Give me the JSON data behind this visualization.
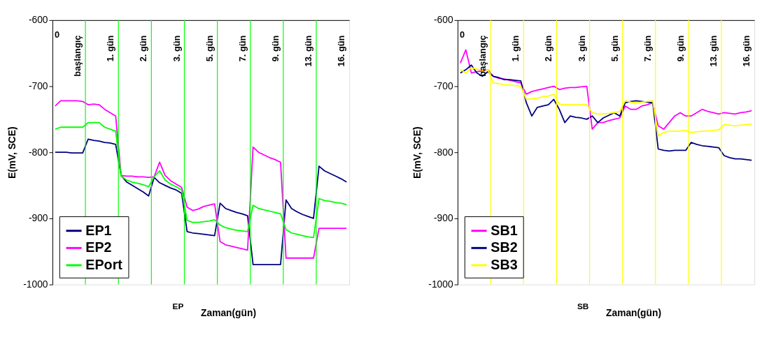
{
  "chart_data": [
    {
      "type": "line",
      "ylabel": "E(mV, SCE)",
      "xlabel": "Zaman(gün)",
      "annotations": [
        "0",
        "başlangıç",
        "1. gün",
        "2. gün",
        "3. gün",
        "5. gün",
        "7. gün",
        "9. gün",
        "13. gün",
        "16. gün",
        "EP"
      ],
      "categories": [
        null,
        null,
        null,
        null,
        null,
        null,
        null,
        null,
        null,
        null,
        null,
        null,
        null,
        null,
        null,
        null,
        null,
        null,
        null,
        null,
        null,
        null,
        null,
        null,
        null,
        null,
        null,
        null,
        null,
        null,
        null,
        null,
        null,
        null,
        null,
        null,
        null,
        null,
        null,
        null,
        null,
        null,
        null,
        null,
        null,
        null,
        null,
        null,
        null,
        null,
        null,
        null,
        null,
        null
      ],
      "ylim": [
        -1000,
        -600
      ],
      "yticks": [
        -600,
        -700,
        -800,
        -900,
        -1000
      ],
      "grid": false,
      "legend": "bottom left",
      "marker": "none",
      "line_style": "solid",
      "series": [
        {
          "name": "EP1",
          "color": "#000080",
          "values": [
            -800,
            -800,
            -800,
            -801,
            -801,
            -801,
            -780,
            -782,
            -783,
            -785,
            -786,
            -788,
            -835,
            -845,
            -850,
            -855,
            -860,
            -866,
            -838,
            -846,
            -850,
            -854,
            -857,
            -862,
            -920,
            -922,
            -923,
            -924,
            -925,
            -926,
            -877,
            -885,
            -888,
            -891,
            -893,
            -896,
            -970,
            -970,
            -970,
            -970,
            -970,
            -970,
            -872,
            -885,
            -890,
            -894,
            -897,
            -900,
            -821,
            -828,
            -832,
            -836,
            -840,
            -845
          ]
        },
        {
          "name": "EP2",
          "color": "#ff00ff",
          "values": [
            -730,
            -722,
            -722,
            -722,
            -722,
            -723,
            -728,
            -727,
            -728,
            -735,
            -740,
            -745,
            -835,
            -836,
            -836,
            -837,
            -837,
            -838,
            -837,
            -815,
            -835,
            -843,
            -848,
            -853,
            -883,
            -888,
            -886,
            -882,
            -880,
            -878,
            -935,
            -940,
            -942,
            -944,
            -946,
            -948,
            -792,
            -800,
            -804,
            -808,
            -811,
            -815,
            -960,
            -960,
            -960,
            -960,
            -960,
            -960,
            -915,
            -915,
            -915,
            -915,
            -915,
            -915
          ]
        },
        {
          "name": "EPort",
          "color": "#00ff00",
          "values": [
            -765,
            -762,
            -762,
            -762,
            -762,
            -762,
            -755,
            -755,
            -755,
            -762,
            -765,
            -768,
            -836,
            -842,
            -845,
            -847,
            -849,
            -852,
            -837,
            -828,
            -842,
            -848,
            -852,
            -857,
            -903,
            -906,
            -906,
            -905,
            -904,
            -902,
            -910,
            -914,
            -916,
            -918,
            -919,
            -920,
            -880,
            -885,
            -887,
            -889,
            -891,
            -893,
            -917,
            -922,
            -924,
            -926,
            -928,
            -929,
            -870,
            -873,
            -874,
            -876,
            -877,
            -879
          ]
        }
      ]
    },
    {
      "type": "line",
      "ylabel": "E(mV, SCE)",
      "xlabel": "Zaman(gün)",
      "annotations": [
        "0",
        "başlangıç",
        "1. gün",
        "2. gün",
        "3. gün",
        "5. gün",
        "7. gün",
        "9. gün",
        "13. gün",
        "16. gün",
        "SB"
      ],
      "categories": [
        null,
        null,
        null,
        null,
        null,
        null,
        null,
        null,
        null,
        null,
        null,
        null,
        null,
        null,
        null,
        null,
        null,
        null,
        null,
        null,
        null,
        null,
        null,
        null,
        null,
        null,
        null,
        null,
        null,
        null,
        null,
        null,
        null,
        null,
        null,
        null,
        null,
        null,
        null,
        null,
        null,
        null,
        null,
        null,
        null,
        null,
        null,
        null,
        null,
        null,
        null,
        null,
        null,
        null
      ],
      "ylim": [
        -1000,
        -600
      ],
      "yticks": [
        -600,
        -700,
        -800,
        -900,
        -1000
      ],
      "grid": false,
      "legend": "bottom left",
      "marker": "none",
      "line_style": "solid",
      "series": [
        {
          "name": "SB1",
          "color": "#ff00ff",
          "values": [
            -665,
            -645,
            -680,
            -678,
            -677,
            -675,
            -685,
            -688,
            -689,
            -691,
            -693,
            -695,
            -712,
            -708,
            -706,
            -704,
            -702,
            -700,
            -705,
            -703,
            -702,
            -702,
            -701,
            -700,
            -765,
            -755,
            -755,
            -752,
            -750,
            -748,
            -730,
            -735,
            -735,
            -730,
            -728,
            -725,
            -760,
            -765,
            -755,
            -745,
            -740,
            -745,
            -745,
            -740,
            -735,
            -738,
            -740,
            -742,
            -740,
            -741,
            -742,
            -740,
            -739,
            -737
          ]
        },
        {
          "name": "SB2",
          "color": "#000080",
          "values": [
            -680,
            -675,
            -668,
            -680,
            -685,
            -678,
            -685,
            -687,
            -690,
            -690,
            -691,
            -692,
            -725,
            -745,
            -732,
            -730,
            -728,
            -720,
            -735,
            -755,
            -745,
            -747,
            -748,
            -750,
            -745,
            -755,
            -748,
            -744,
            -740,
            -745,
            -725,
            -723,
            -722,
            -723,
            -724,
            -725,
            -795,
            -797,
            -798,
            -797,
            -797,
            -797,
            -785,
            -788,
            -790,
            -791,
            -792,
            -793,
            -805,
            -808,
            -810,
            -810,
            -811,
            -812
          ]
        },
        {
          "name": "SB3",
          "color": "#ffff00",
          "values": [
            -675,
            -680,
            -672,
            -674,
            -676,
            -675,
            -695,
            -696,
            -698,
            -698,
            -699,
            -700,
            -720,
            -719,
            -718,
            -716,
            -715,
            -712,
            -727,
            -728,
            -728,
            -728,
            -728,
            -728,
            -740,
            -742,
            -742,
            -741,
            -740,
            -738,
            -722,
            -724,
            -725,
            -724,
            -723,
            -722,
            -775,
            -770,
            -768,
            -768,
            -768,
            -767,
            -770,
            -769,
            -768,
            -768,
            -767,
            -766,
            -758,
            -759,
            -760,
            -759,
            -758,
            -757
          ]
        }
      ]
    }
  ]
}
